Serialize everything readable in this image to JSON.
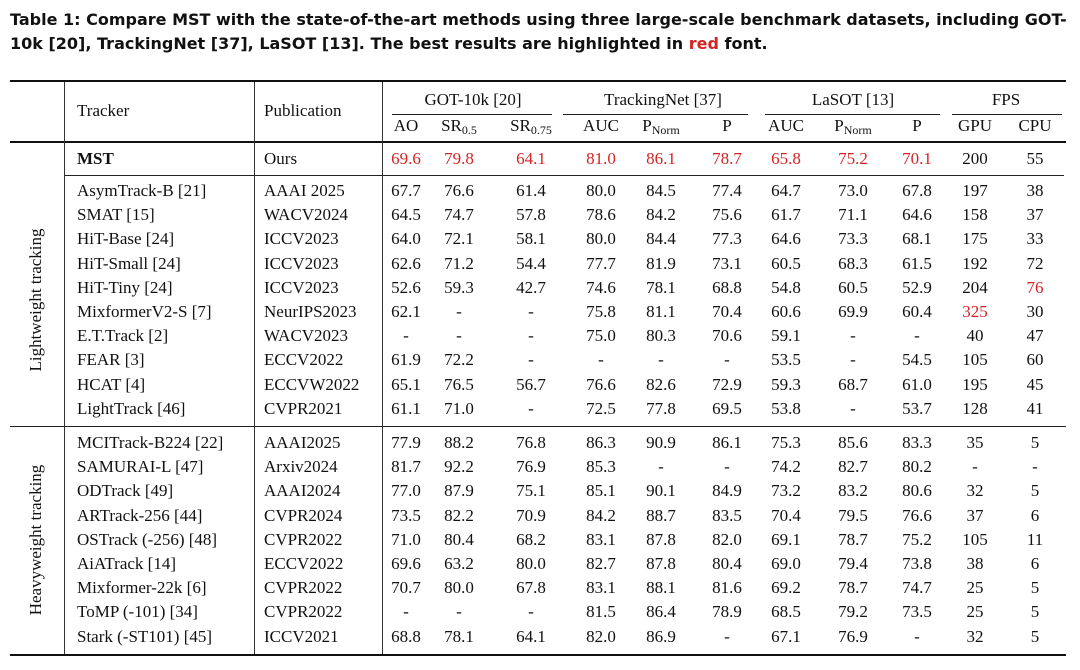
{
  "caption": {
    "bold_text": "Table 1: Compare MST with the state-of-the-art methods using three large-scale benchmark datasets, including GOT-10k [20], TrackingNet [37], LaSOT [13]. The best results are highlighted in ",
    "red_word": "red",
    "tail": " font."
  },
  "header": {
    "tracker": "Tracker",
    "publication": "Publication",
    "groups": [
      "GOT-10k [20]",
      "TrackingNet [37]",
      "LaSOT [13]",
      "FPS"
    ],
    "metrics": [
      {
        "base": "AO",
        "sub": ""
      },
      {
        "base": "SR",
        "sub": "0.5"
      },
      {
        "base": "SR",
        "sub": "0.75"
      },
      {
        "base": "AUC",
        "sub": ""
      },
      {
        "base": "P",
        "sub": "Norm"
      },
      {
        "base": "P",
        "sub": ""
      },
      {
        "base": "AUC",
        "sub": ""
      },
      {
        "base": "P",
        "sub": "Norm"
      },
      {
        "base": "P",
        "sub": ""
      },
      {
        "base": "GPU",
        "sub": ""
      },
      {
        "base": "CPU",
        "sub": ""
      }
    ]
  },
  "highlight_color": "#d32424",
  "mst": {
    "tracker": "MST",
    "publication": "Ours",
    "values": [
      "69.6",
      "79.8",
      "64.1",
      "81.0",
      "86.1",
      "78.7",
      "65.8",
      "75.2",
      "70.1",
      "200",
      "55"
    ],
    "best": [
      true,
      true,
      true,
      true,
      true,
      true,
      true,
      true,
      true,
      false,
      false
    ]
  },
  "groups": [
    {
      "label": "Lightweight tracking",
      "rows": [
        {
          "tracker": "AsymTrack-B [21]",
          "publication": "AAAI 2025",
          "values": [
            "67.7",
            "76.6",
            "61.4",
            "80.0",
            "84.5",
            "77.4",
            "64.7",
            "73.0",
            "67.8",
            "197",
            "38"
          ]
        },
        {
          "tracker": "SMAT [15]",
          "publication": "WACV2024",
          "values": [
            "64.5",
            "74.7",
            "57.8",
            "78.6",
            "84.2",
            "75.6",
            "61.7",
            "71.1",
            "64.6",
            "158",
            "37"
          ]
        },
        {
          "tracker": "HiT-Base [24]",
          "publication": "ICCV2023",
          "values": [
            "64.0",
            "72.1",
            "58.1",
            "80.0",
            "84.4",
            "77.3",
            "64.6",
            "73.3",
            "68.1",
            "175",
            "33"
          ]
        },
        {
          "tracker": "HiT-Small [24]",
          "publication": "ICCV2023",
          "values": [
            "62.6",
            "71.2",
            "54.4",
            "77.7",
            "81.9",
            "73.1",
            "60.5",
            "68.3",
            "61.5",
            "192",
            "72"
          ]
        },
        {
          "tracker": "HiT-Tiny [24]",
          "publication": "ICCV2023",
          "values": [
            "52.6",
            "59.3",
            "42.7",
            "74.6",
            "78.1",
            "68.8",
            "54.8",
            "60.5",
            "52.9",
            "204",
            "76"
          ],
          "best_idx": [
            10
          ]
        },
        {
          "tracker": "MixformerV2-S [7]",
          "publication": "NeurIPS2023",
          "values": [
            "62.1",
            "-",
            "-",
            "75.8",
            "81.1",
            "70.4",
            "60.6",
            "69.9",
            "60.4",
            "325",
            "30"
          ],
          "best_idx": [
            9
          ]
        },
        {
          "tracker": "E.T.Track [2]",
          "publication": "WACV2023",
          "values": [
            "-",
            "-",
            "-",
            "75.0",
            "80.3",
            "70.6",
            "59.1",
            "-",
            "-",
            "40",
            "47"
          ]
        },
        {
          "tracker": "FEAR [3]",
          "publication": "ECCV2022",
          "values": [
            "61.9",
            "72.2",
            "-",
            "-",
            "-",
            "-",
            "53.5",
            "-",
            "54.5",
            "105",
            "60"
          ]
        },
        {
          "tracker": "HCAT [4]",
          "publication": "ECCVW2022",
          "values": [
            "65.1",
            "76.5",
            "56.7",
            "76.6",
            "82.6",
            "72.9",
            "59.3",
            "68.7",
            "61.0",
            "195",
            "45"
          ]
        },
        {
          "tracker": "LightTrack [46]",
          "publication": "CVPR2021",
          "values": [
            "61.1",
            "71.0",
            "-",
            "72.5",
            "77.8",
            "69.5",
            "53.8",
            "-",
            "53.7",
            "128",
            "41"
          ]
        }
      ]
    },
    {
      "label": "Heavyweight tracking",
      "rows": [
        {
          "tracker": "MCITrack-B224 [22]",
          "publication": "AAAI2025",
          "values": [
            "77.9",
            "88.2",
            "76.8",
            "86.3",
            "90.9",
            "86.1",
            "75.3",
            "85.6",
            "83.3",
            "35",
            "5"
          ]
        },
        {
          "tracker": "SAMURAI-L [47]",
          "publication": "Arxiv2024",
          "values": [
            "81.7",
            "92.2",
            "76.9",
            "85.3",
            "-",
            "-",
            "74.2",
            "82.7",
            "80.2",
            "-",
            "-"
          ]
        },
        {
          "tracker": "ODTrack [49]",
          "publication": "AAAI2024",
          "values": [
            "77.0",
            "87.9",
            "75.1",
            "85.1",
            "90.1",
            "84.9",
            "73.2",
            "83.2",
            "80.6",
            "32",
            "5"
          ]
        },
        {
          "tracker": "ARTrack-256 [44]",
          "publication": "CVPR2024",
          "values": [
            "73.5",
            "82.2",
            "70.9",
            "84.2",
            "88.7",
            "83.5",
            "70.4",
            "79.5",
            "76.6",
            "37",
            "6"
          ]
        },
        {
          "tracker": "OSTrack (-256) [48]",
          "publication": "CVPR2022",
          "values": [
            "71.0",
            "80.4",
            "68.2",
            "83.1",
            "87.8",
            "82.0",
            "69.1",
            "78.7",
            "75.2",
            "105",
            "11"
          ]
        },
        {
          "tracker": "AiATrack [14]",
          "publication": "ECCV2022",
          "values": [
            "69.6",
            "63.2",
            "80.0",
            "82.7",
            "87.8",
            "80.4",
            "69.0",
            "79.4",
            "73.8",
            "38",
            "6"
          ]
        },
        {
          "tracker": "Mixformer-22k [6]",
          "publication": "CVPR2022",
          "values": [
            "70.7",
            "80.0",
            "67.8",
            "83.1",
            "88.1",
            "81.6",
            "69.2",
            "78.7",
            "74.7",
            "25",
            "5"
          ]
        },
        {
          "tracker": "ToMP (-101) [34]",
          "publication": "CVPR2022",
          "values": [
            "-",
            "-",
            "-",
            "81.5",
            "86.4",
            "78.9",
            "68.5",
            "79.2",
            "73.5",
            "25",
            "5"
          ]
        },
        {
          "tracker": "Stark (-ST101) [45]",
          "publication": "ICCV2021",
          "values": [
            "68.8",
            "78.1",
            "64.1",
            "82.0",
            "86.9",
            "-",
            "67.1",
            "76.9",
            "-",
            "32",
            "5"
          ]
        }
      ]
    }
  ]
}
